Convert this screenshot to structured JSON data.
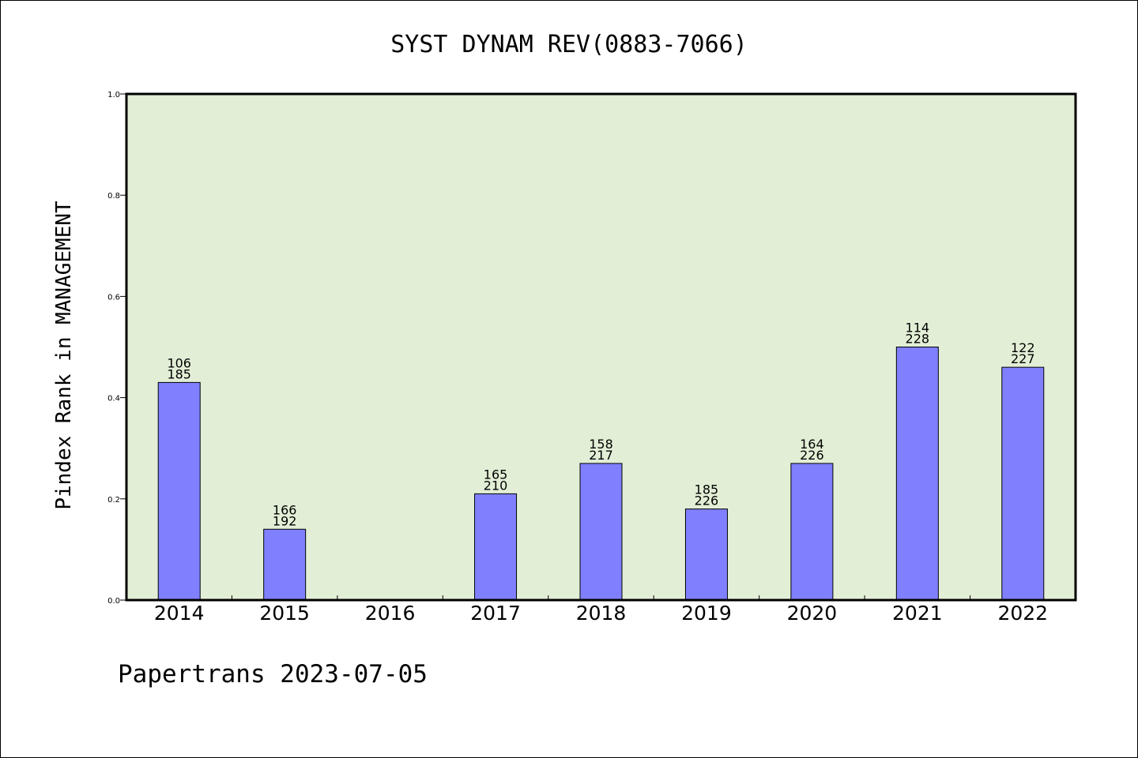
{
  "chart_data": {
    "type": "bar",
    "title": "SYST DYNAM REV(0883-7066)",
    "xlabel": "",
    "ylabel": "Pindex Rank in MANAGEMENT",
    "ylim": [
      0.0,
      1.0
    ],
    "yticks": [
      "0.0",
      "0.2",
      "0.4",
      "0.6",
      "0.8",
      "1.0"
    ],
    "grid": false,
    "categories": [
      "2014",
      "2015",
      "2016",
      "2017",
      "2018",
      "2019",
      "2020",
      "2021",
      "2022"
    ],
    "values": [
      0.43,
      0.14,
      null,
      0.21,
      0.27,
      0.18,
      0.27,
      0.5,
      0.46
    ],
    "rank_labels": [
      [
        "106",
        "185"
      ],
      [
        "166",
        "192"
      ],
      null,
      [
        "165",
        "210"
      ],
      [
        "158",
        "217"
      ],
      [
        "185",
        "226"
      ],
      [
        "164",
        "226"
      ],
      [
        "114",
        "228"
      ],
      [
        "122",
        "227"
      ]
    ],
    "colors": {
      "plot_background": "#e2efd6",
      "bar_fill": "#8080ff",
      "bar_stroke": "#000000",
      "axis": "#000000"
    }
  },
  "footer": {
    "text": "Papertrans 2023-07-05"
  }
}
